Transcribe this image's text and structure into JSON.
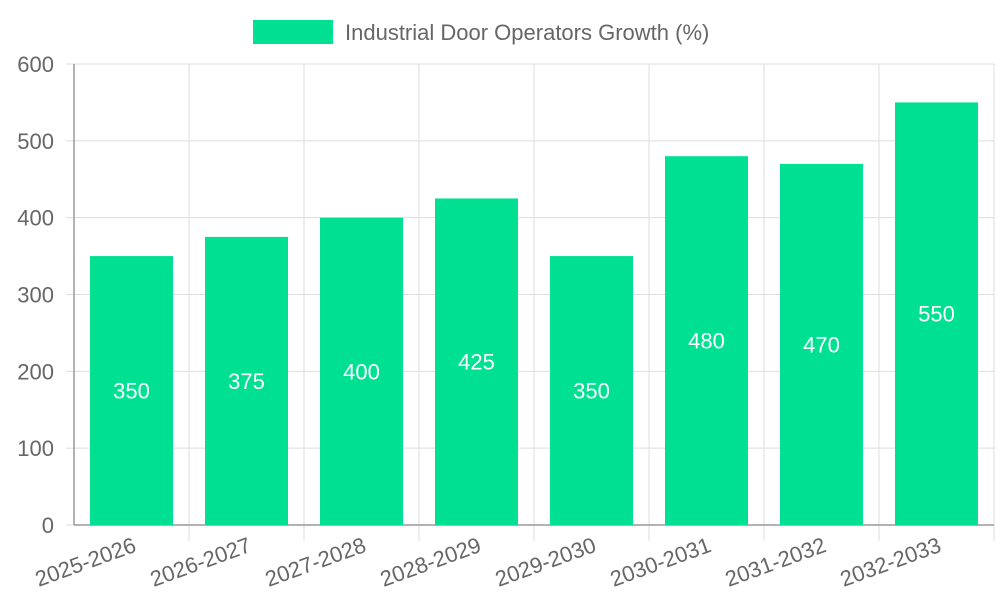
{
  "chart_data": {
    "type": "bar",
    "categories": [
      "2025-2026",
      "2026-2027",
      "2027-2028",
      "2028-2029",
      "2029-2030",
      "2030-2031",
      "2031-2032",
      "2032-2033"
    ],
    "series": [
      {
        "name": "Industrial Door Operators Growth (%)",
        "values": [
          350,
          375,
          400,
          425,
          350,
          480,
          470,
          550
        ]
      }
    ],
    "ylim": [
      0,
      600
    ],
    "yticks": [
      0,
      100,
      200,
      300,
      400,
      500,
      600
    ],
    "grid": true,
    "legend": "top",
    "data_labels": true,
    "colors": {
      "bar": "#00E092",
      "grid": "#DDDDDD",
      "axis": "#999999",
      "text": "#666666",
      "data_label": "#FFFFFF"
    }
  }
}
